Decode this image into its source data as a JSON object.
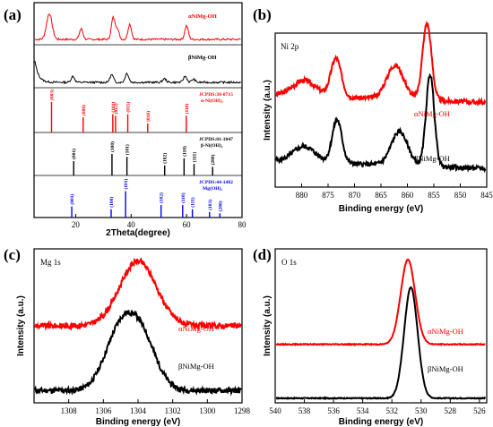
{
  "colors": {
    "alpha": "#ff0000",
    "beta": "#000000",
    "ref_red": "#ff0000",
    "ref_black": "#000000",
    "ref_blue": "#0000ff"
  },
  "chart_data": [
    {
      "panel": "(a)",
      "type": "line",
      "xlabel": "2Theta(degree)",
      "xlim": [
        5,
        80
      ],
      "xticks": [
        20,
        40,
        60,
        80
      ],
      "series": [
        {
          "name": "αNiMg-OH",
          "peaks": [
            [
              10.5,
              0.85
            ],
            [
              22,
              0.35
            ],
            [
              33.5,
              0.7
            ],
            [
              35,
              0.35
            ],
            [
              39.5,
              0.5
            ],
            [
              60,
              0.45
            ]
          ]
        },
        {
          "name": "βNiMg-OH",
          "peaks": [
            [
              19,
              0.2
            ],
            [
              33,
              0.25
            ],
            [
              38.5,
              0.3
            ],
            [
              52,
              0.12
            ],
            [
              59.5,
              0.2
            ],
            [
              62.5,
              0.1
            ]
          ]
        }
      ],
      "references": [
        {
          "label": "JCPDS:38-0715",
          "phase": "α-Ni(OH)₂",
          "lines": [
            {
              "x": 11.3,
              "h": 1.0,
              "hkl": "(003)"
            },
            {
              "x": 22.7,
              "h": 0.5,
              "hkl": "(006)"
            },
            {
              "x": 33.4,
              "h": 0.6,
              "hkl": "(101)"
            },
            {
              "x": 34.4,
              "h": 0.55,
              "hkl": "(012)"
            },
            {
              "x": 38.8,
              "h": 0.6,
              "hkl": "(015)"
            },
            {
              "x": 46.0,
              "h": 0.3,
              "hkl": "(016)"
            },
            {
              "x": 59.9,
              "h": 0.55,
              "hkl": "(110)"
            }
          ]
        },
        {
          "label": "JCPDS:01-1047",
          "phase": "β-Ni(OH)₂",
          "lines": [
            {
              "x": 19.3,
              "h": 0.5,
              "hkl": "(001)"
            },
            {
              "x": 33.1,
              "h": 0.75,
              "hkl": "(100)"
            },
            {
              "x": 38.5,
              "h": 0.65,
              "hkl": "(101)"
            },
            {
              "x": 52.1,
              "h": 0.35,
              "hkl": "(102)"
            },
            {
              "x": 59.1,
              "h": 0.6,
              "hkl": "(110)"
            },
            {
              "x": 62.7,
              "h": 0.4,
              "hkl": "(111)"
            },
            {
              "x": 69.4,
              "h": 0.3,
              "hkl": "(200)"
            }
          ]
        },
        {
          "label": "JCPDS:44-1482",
          "phase": "Mg(OH)₂",
          "lines": [
            {
              "x": 18.6,
              "h": 0.4,
              "hkl": "(001)"
            },
            {
              "x": 32.8,
              "h": 0.3,
              "hkl": "(100)"
            },
            {
              "x": 38.0,
              "h": 0.95,
              "hkl": "(101)"
            },
            {
              "x": 50.8,
              "h": 0.45,
              "hkl": "(102)"
            },
            {
              "x": 58.6,
              "h": 0.45,
              "hkl": "(110)"
            },
            {
              "x": 62.1,
              "h": 0.3,
              "hkl": "(111)"
            },
            {
              "x": 68.3,
              "h": 0.2,
              "hkl": "(103)"
            },
            {
              "x": 72.0,
              "h": 0.15,
              "hkl": "(200)"
            }
          ]
        }
      ]
    },
    {
      "panel": "(b)",
      "type": "line",
      "title": "Ni 2p",
      "xlabel": "Binding energy (eV)",
      "ylabel": "Intensity (a.u.)",
      "xlim": [
        885,
        845
      ],
      "xticks": [
        880,
        875,
        870,
        865,
        860,
        855,
        850,
        845
      ],
      "series": [
        {
          "name": "αNiMg-OH",
          "baseline": 0.55,
          "peaks": [
            [
              879.5,
              0.1,
              3
            ],
            [
              873.5,
              0.25,
              1.4
            ],
            [
              862.3,
              0.22,
              2.3
            ],
            [
              856.3,
              0.5,
              1.2
            ]
          ]
        },
        {
          "name": "βNiMg-OH",
          "baseline": 0.12,
          "peaks": [
            [
              879.5,
              0.1,
              3
            ],
            [
              873.3,
              0.28,
              1.3
            ],
            [
              861.5,
              0.22,
              2.2
            ],
            [
              855.7,
              0.6,
              1.1
            ]
          ]
        }
      ]
    },
    {
      "panel": "(c)",
      "type": "line",
      "title": "Mg 1s",
      "xlabel": "Binding energy (eV)",
      "ylabel": "Intensity (a.u.)",
      "xlim": [
        1310,
        1298
      ],
      "xticks": [
        1308,
        1306,
        1304,
        1302,
        1300,
        1298
      ],
      "series": [
        {
          "name": "αNiMg-OH",
          "baseline": 0.5,
          "peaks": [
            [
              1304.0,
              0.42,
              1.5
            ]
          ]
        },
        {
          "name": "βNiMg-OH",
          "baseline": 0.08,
          "peaks": [
            [
              1305.1,
              0.35,
              1.2
            ],
            [
              1303.8,
              0.33,
              1.2
            ]
          ]
        }
      ]
    },
    {
      "panel": "(d)",
      "type": "line",
      "title": "O 1s",
      "xlabel": "Binding energy (eV)",
      "ylabel": "Intensity (a.u.)",
      "xlim": [
        540,
        525.5
      ],
      "xticks": [
        540,
        538,
        536,
        534,
        532,
        530,
        528,
        526
      ],
      "series": [
        {
          "name": "αNiMg-OH",
          "baseline": 0.38,
          "peaks": [
            [
              530.9,
              0.55,
              0.7
            ]
          ]
        },
        {
          "name": "βNiMg-OH",
          "baseline": 0.03,
          "peaks": [
            [
              530.7,
              0.72,
              0.65
            ]
          ]
        }
      ]
    }
  ]
}
